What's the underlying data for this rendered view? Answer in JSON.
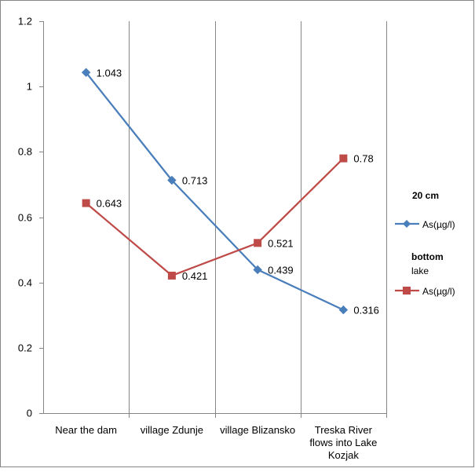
{
  "chart_data": {
    "type": "line",
    "categories": [
      [
        "Near the dam"
      ],
      [
        "village Zdunje"
      ],
      [
        "village Blizansko"
      ],
      [
        "Treska River",
        "flows into Lake",
        "Kozjak"
      ]
    ],
    "series": [
      {
        "name": "As(µg/l)",
        "group": "20 cm",
        "values": [
          1.043,
          0.713,
          0.439,
          0.316
        ],
        "labels": [
          "1.043",
          "0.713",
          "0.439",
          "0.316"
        ],
        "color": "#4a7ebb",
        "marker": "diamond"
      },
      {
        "name": "As(µg/l)",
        "group": "bottom lake",
        "values": [
          0.643,
          0.421,
          0.521,
          0.78
        ],
        "labels": [
          "0.643",
          "0.421",
          "0.521",
          "0.78"
        ],
        "color": "#be4b48",
        "marker": "square"
      }
    ],
    "legend": {
      "position": "right",
      "group1": "20 cm",
      "group2_line1": "bottom",
      "group2_line2": "lake"
    },
    "ylim": [
      0,
      1.2
    ],
    "yticks": [
      "0",
      "0.2",
      "0.4",
      "0.6",
      "0.8",
      "1",
      "1.2"
    ],
    "grid": {
      "vertical": true,
      "horizontal": false
    },
    "colors": {
      "axis": "#868686",
      "grid": "#868686"
    }
  }
}
